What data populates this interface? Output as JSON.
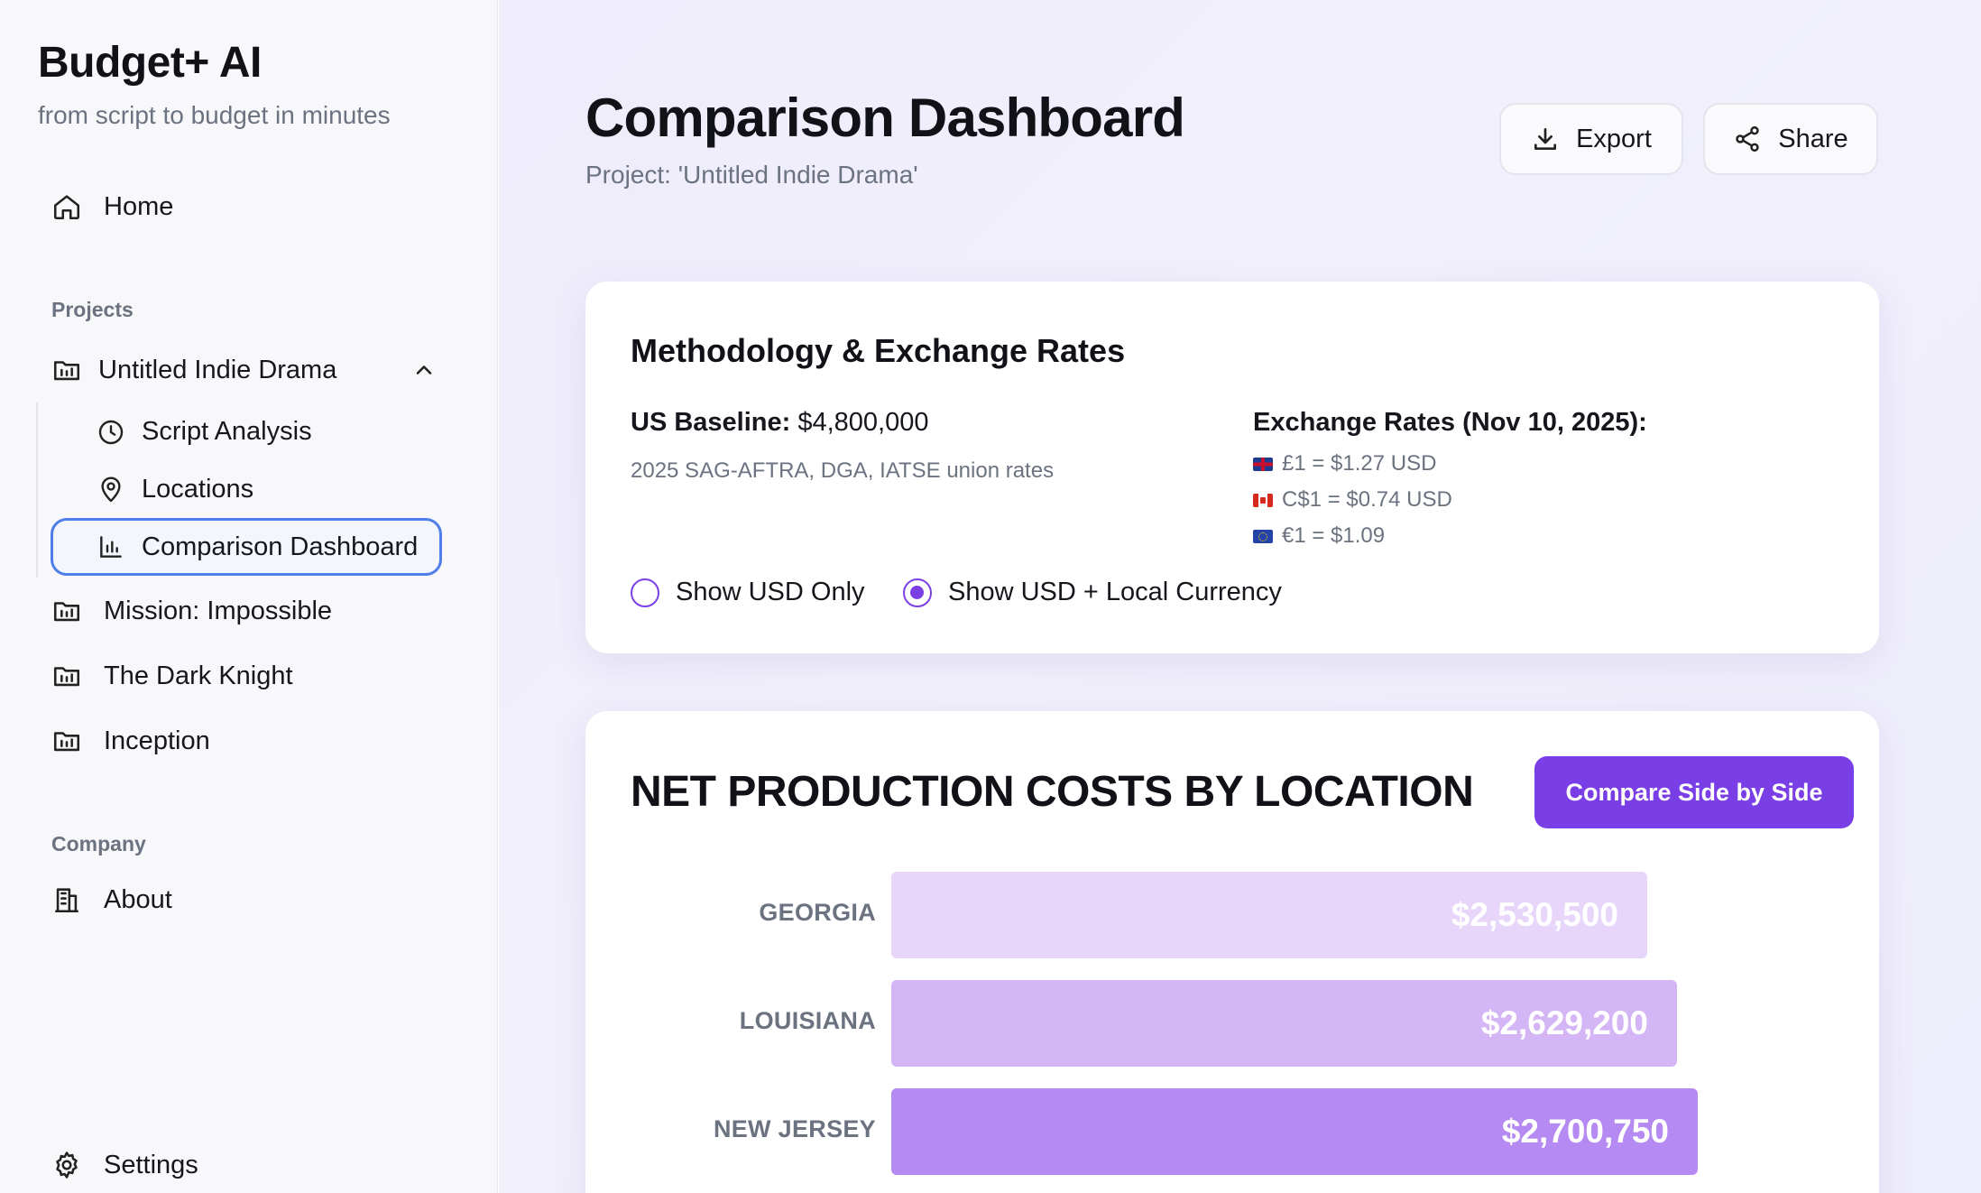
{
  "sidebar": {
    "brand_title": "Budget+ AI",
    "brand_subtitle": "from script to budget in minutes",
    "home_label": "Home",
    "projects_label": "Projects",
    "project_open": {
      "label": "Untitled Indie Drama",
      "sub_items": [
        {
          "label": "Script Analysis",
          "icon": "clock-icon"
        },
        {
          "label": "Locations",
          "icon": "map-pin-icon"
        },
        {
          "label": "Comparison Dashboard",
          "icon": "bar-chart-icon",
          "active": true
        }
      ]
    },
    "other_projects": [
      {
        "label": "Mission: Impossible"
      },
      {
        "label": "The Dark Knight"
      },
      {
        "label": "Inception"
      }
    ],
    "company_label": "Company",
    "about_label": "About",
    "settings_label": "Settings"
  },
  "header": {
    "title": "Comparison Dashboard",
    "subtitle": "Project: 'Untitled Indie Drama'",
    "export_label": "Export",
    "share_label": "Share"
  },
  "methodology": {
    "title": "Methodology & Exchange Rates",
    "baseline_label": "US Baseline:",
    "baseline_value": "$4,800,000",
    "baseline_note": "2025 SAG-AFTRA, DGA, IATSE union rates",
    "rates_title": "Exchange Rates (Nov 10, 2025):",
    "rates": [
      {
        "flag": "uk-flag",
        "text": "£1 = $1.27 USD"
      },
      {
        "flag": "canada-flag",
        "text": "C$1 = $0.74 USD"
      },
      {
        "flag": "eu-flag",
        "text": "€1 = $1.09"
      }
    ],
    "currency_options": [
      {
        "label": "Show USD Only",
        "selected": false
      },
      {
        "label": "Show USD + Local Currency",
        "selected": true
      }
    ]
  },
  "costs": {
    "title": "NET PRODUCTION COSTS BY LOCATION",
    "compare_button": "Compare Side by Side",
    "accent_color": "#7a3ee6"
  },
  "chart_data": {
    "type": "bar",
    "orientation": "horizontal",
    "title": "NET PRODUCTION COSTS BY LOCATION",
    "categories": [
      "GEORGIA",
      "LOUISIANA",
      "NEW JERSEY"
    ],
    "values": [
      2530500,
      2629200,
      2700750
    ],
    "value_labels": [
      "$2,530,500",
      "$2,629,200",
      "$2,700,750"
    ],
    "colors": [
      "#e7d6f9",
      "#d4b6f6",
      "#b58af2"
    ],
    "xlim": [
      0,
      3000000
    ]
  }
}
